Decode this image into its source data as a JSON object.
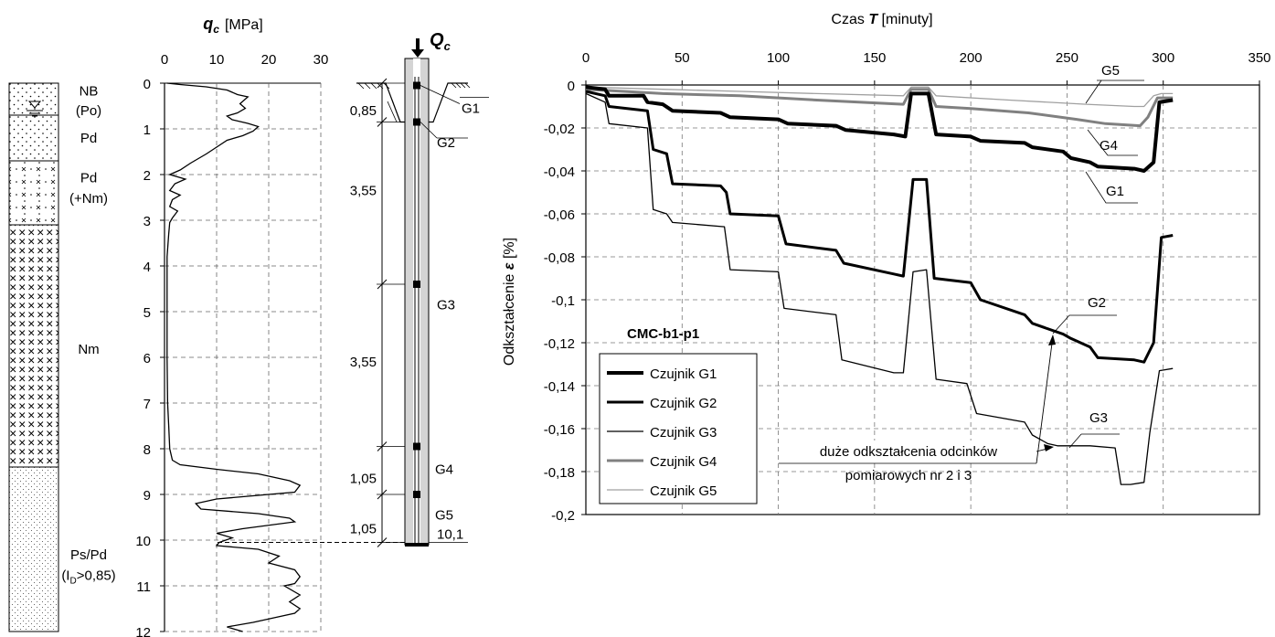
{
  "soil_profile": {
    "layers": [
      {
        "from": 0,
        "to": 0.7,
        "label": "NB",
        "pattern": "dots"
      },
      {
        "from": 0.7,
        "to": 1.7,
        "label": "Pd",
        "pattern": "dots"
      },
      {
        "from": 1.7,
        "to": 3.1,
        "label": "Pd",
        "pattern": "dots-x"
      },
      {
        "from": 3.1,
        "to": 8.4,
        "label": "Nm",
        "pattern": "x"
      },
      {
        "from": 8.4,
        "to": 12,
        "label": "Ps/Pd",
        "pattern": "fine-dots"
      }
    ],
    "labels": [
      {
        "text": "NB",
        "depth": 0.15
      },
      {
        "text": "(Po)",
        "depth": 0.58
      },
      {
        "text": "Pd",
        "depth": 1.18
      },
      {
        "text": "Pd",
        "depth": 2.05
      },
      {
        "text": "(+Nm)",
        "depth": 2.5
      },
      {
        "text": "Nm",
        "depth": 5.8
      },
      {
        "text": "Ps/Pd",
        "depth": 10.3
      },
      {
        "text": "(I",
        "depth": 10.75,
        "sub": "D",
        "rest": ">0,85)"
      }
    ]
  },
  "pile": {
    "load_label": "Q",
    "load_sub": "c",
    "length": 10.1,
    "dims": [
      {
        "from": 0,
        "to": 0.85,
        "label": "0,85"
      },
      {
        "from": 0.85,
        "to": 4.4,
        "label": "3,55"
      },
      {
        "from": 4.4,
        "to": 7.95,
        "label": "3,55"
      },
      {
        "from": 7.95,
        "to": 9.0,
        "label": "1,05"
      },
      {
        "from": 9.0,
        "to": 10.05,
        "label": "1,05"
      }
    ],
    "sensors": [
      {
        "name": "G1",
        "depth": 0.05
      },
      {
        "name": "G2",
        "depth": 0.85
      },
      {
        "name": "G3",
        "depth": 4.4
      },
      {
        "name": "G4",
        "depth": 7.95
      },
      {
        "name": "G5",
        "depth": 9.0
      }
    ],
    "bottom_label": "10,1"
  },
  "chart_data": [
    {
      "type": "line",
      "title": "",
      "xlabel": "q c [MPa]",
      "xlabel_parts": {
        "symbol": "q",
        "sub": "c",
        "unit": "[MPa]"
      },
      "ylabel": "",
      "xlim": [
        0,
        30
      ],
      "ylim": [
        0,
        12
      ],
      "x_ticks": [
        0,
        10,
        20,
        30
      ],
      "y_ticks": [
        0,
        1,
        2,
        3,
        4,
        5,
        6,
        7,
        8,
        9,
        10,
        11,
        12
      ],
      "grid": true,
      "series": [
        {
          "name": "",
          "color": "#000000",
          "points": [
            [
              0.5,
              0.0
            ],
            [
              3,
              0.03
            ],
            [
              8,
              0.08
            ],
            [
              12,
              0.15
            ],
            [
              14,
              0.25
            ],
            [
              16,
              0.3
            ],
            [
              14.5,
              0.45
            ],
            [
              15.5,
              0.55
            ],
            [
              14,
              0.65
            ],
            [
              12,
              0.72
            ],
            [
              13,
              0.8
            ],
            [
              16,
              0.88
            ],
            [
              18,
              0.95
            ],
            [
              17,
              1.05
            ],
            [
              15,
              1.15
            ],
            [
              12,
              1.25
            ],
            [
              10,
              1.4
            ],
            [
              8,
              1.55
            ],
            [
              5,
              1.75
            ],
            [
              3,
              1.9
            ],
            [
              1,
              2.0
            ],
            [
              4,
              2.1
            ],
            [
              2,
              2.2
            ],
            [
              1,
              2.35
            ],
            [
              3,
              2.45
            ],
            [
              1.5,
              2.55
            ],
            [
              1,
              2.7
            ],
            [
              2.5,
              2.8
            ],
            [
              1.5,
              2.95
            ],
            [
              1,
              3.05
            ],
            [
              0.8,
              3.3
            ],
            [
              0.5,
              3.8
            ],
            [
              0.5,
              5
            ],
            [
              0.5,
              6
            ],
            [
              0.6,
              7
            ],
            [
              0.8,
              7.5
            ],
            [
              1,
              8.0
            ],
            [
              1.5,
              8.25
            ],
            [
              3,
              8.35
            ],
            [
              10,
              8.45
            ],
            [
              18,
              8.55
            ],
            [
              24,
              8.7
            ],
            [
              26,
              8.8
            ],
            [
              25,
              8.95
            ],
            [
              15,
              9.05
            ],
            [
              10,
              9.1
            ],
            [
              6,
              9.2
            ],
            [
              7,
              9.32
            ],
            [
              18,
              9.42
            ],
            [
              24,
              9.52
            ],
            [
              25,
              9.6
            ],
            [
              15,
              9.75
            ],
            [
              10,
              9.85
            ],
            [
              13,
              9.95
            ],
            [
              10.5,
              10.05
            ],
            [
              10,
              10.12
            ],
            [
              18,
              10.2
            ],
            [
              22,
              10.35
            ],
            [
              20,
              10.5
            ],
            [
              25,
              10.65
            ],
            [
              26,
              10.8
            ],
            [
              25,
              10.95
            ],
            [
              23,
              11.0
            ],
            [
              26,
              11.2
            ],
            [
              24,
              11.35
            ],
            [
              26,
              11.5
            ],
            [
              25,
              11.6
            ],
            [
              21,
              11.7
            ],
            [
              17,
              11.8
            ],
            [
              12,
              11.9
            ],
            [
              15,
              12.0
            ]
          ]
        }
      ],
      "annotations": []
    },
    {
      "type": "line",
      "title": "Czas T [minuty]",
      "title_parts": {
        "pre": "Czas ",
        "symbol": "T",
        "post": " [minuty]"
      },
      "xlabel": "Czas T [minuty]",
      "ylabel": "Odkształcenie ε [%]",
      "ylabel_parts": {
        "pre": "Odkształcenie ",
        "symbol": "ε",
        "post": " [%]"
      },
      "xlim": [
        0,
        350
      ],
      "ylim": [
        -0.2,
        0
      ],
      "x_ticks": [
        0,
        50,
        100,
        150,
        200,
        250,
        300,
        350
      ],
      "y_ticks": [
        0,
        -0.02,
        -0.04,
        -0.06,
        -0.08,
        -0.1,
        -0.12,
        -0.14,
        -0.16,
        -0.18,
        -0.2
      ],
      "y_tick_labels": [
        "0",
        "-0,02",
        "-0,04",
        "-0,06",
        "-0,08",
        "-0,1",
        "-0,12",
        "-0,14",
        "-0,16",
        "-0,18",
        "-0,2"
      ],
      "grid": true,
      "legend_title": "CMC-b1-p1",
      "legend_position": "bottom-left",
      "series": [
        {
          "name": "Czujnik G1",
          "color": "#000000",
          "width": 4,
          "points": [
            [
              0,
              -0.001
            ],
            [
              10,
              -0.002
            ],
            [
              12,
              -0.005
            ],
            [
              30,
              -0.005
            ],
            [
              32,
              -0.008
            ],
            [
              40,
              -0.009
            ],
            [
              45,
              -0.012
            ],
            [
              70,
              -0.013
            ],
            [
              75,
              -0.015
            ],
            [
              100,
              -0.016
            ],
            [
              105,
              -0.018
            ],
            [
              130,
              -0.019
            ],
            [
              135,
              -0.021
            ],
            [
              160,
              -0.023
            ],
            [
              166,
              -0.024
            ],
            [
              169,
              -0.004
            ],
            [
              178,
              -0.004
            ],
            [
              182,
              -0.023
            ],
            [
              200,
              -0.024
            ],
            [
              205,
              -0.026
            ],
            [
              228,
              -0.027
            ],
            [
              232,
              -0.029
            ],
            [
              248,
              -0.031
            ],
            [
              252,
              -0.034
            ],
            [
              262,
              -0.036
            ],
            [
              266,
              -0.038
            ],
            [
              285,
              -0.039
            ],
            [
              290,
              -0.04
            ],
            [
              295,
              -0.036
            ],
            [
              298,
              -0.008
            ],
            [
              305,
              -0.007
            ]
          ]
        },
        {
          "name": "Czujnik G2",
          "color": "#000000",
          "width": 3,
          "points": [
            [
              0,
              -0.003
            ],
            [
              10,
              -0.005
            ],
            [
              12,
              -0.01
            ],
            [
              32,
              -0.012
            ],
            [
              35,
              -0.03
            ],
            [
              42,
              -0.032
            ],
            [
              45,
              -0.046
            ],
            [
              70,
              -0.047
            ],
            [
              73,
              -0.05
            ],
            [
              75,
              -0.06
            ],
            [
              100,
              -0.061
            ],
            [
              104,
              -0.074
            ],
            [
              130,
              -0.077
            ],
            [
              134,
              -0.083
            ],
            [
              160,
              -0.088
            ],
            [
              165,
              -0.089
            ],
            [
              170,
              -0.044
            ],
            [
              177,
              -0.044
            ],
            [
              181,
              -0.09
            ],
            [
              200,
              -0.092
            ],
            [
              205,
              -0.1
            ],
            [
              228,
              -0.107
            ],
            [
              232,
              -0.111
            ],
            [
              248,
              -0.116
            ],
            [
              252,
              -0.118
            ],
            [
              262,
              -0.122
            ],
            [
              266,
              -0.127
            ],
            [
              285,
              -0.128
            ],
            [
              290,
              -0.129
            ],
            [
              295,
              -0.12
            ],
            [
              299,
              -0.071
            ],
            [
              305,
              -0.07
            ]
          ]
        },
        {
          "name": "Czujnik G3",
          "color": "#000000",
          "width": 1.3,
          "points": [
            [
              0,
              -0.004
            ],
            [
              10,
              -0.008
            ],
            [
              12,
              -0.018
            ],
            [
              32,
              -0.02
            ],
            [
              35,
              -0.058
            ],
            [
              42,
              -0.06
            ],
            [
              45,
              -0.064
            ],
            [
              72,
              -0.066
            ],
            [
              75,
              -0.086
            ],
            [
              100,
              -0.087
            ],
            [
              103,
              -0.104
            ],
            [
              130,
              -0.107
            ],
            [
              133,
              -0.128
            ],
            [
              160,
              -0.134
            ],
            [
              165,
              -0.134
            ],
            [
              170,
              -0.087
            ],
            [
              177,
              -0.086
            ],
            [
              182,
              -0.137
            ],
            [
              198,
              -0.139
            ],
            [
              203,
              -0.153
            ],
            [
              228,
              -0.157
            ],
            [
              232,
              -0.163
            ],
            [
              240,
              -0.167
            ],
            [
              245,
              -0.168
            ],
            [
              258,
              -0.168
            ],
            [
              262,
              -0.168
            ],
            [
              275,
              -0.169
            ],
            [
              278,
              -0.186
            ],
            [
              283,
              -0.186
            ],
            [
              290,
              -0.185
            ],
            [
              293,
              -0.162
            ],
            [
              298,
              -0.133
            ],
            [
              305,
              -0.132
            ]
          ]
        },
        {
          "name": "Czujnik G4",
          "color": "#808080",
          "width": 3,
          "points": [
            [
              0,
              -0.002
            ],
            [
              20,
              -0.003
            ],
            [
              40,
              -0.004
            ],
            [
              80,
              -0.005
            ],
            [
              120,
              -0.007
            ],
            [
              165,
              -0.009
            ],
            [
              169,
              -0.002
            ],
            [
              178,
              -0.002
            ],
            [
              182,
              -0.01
            ],
            [
              200,
              -0.011
            ],
            [
              230,
              -0.013
            ],
            [
              255,
              -0.016
            ],
            [
              270,
              -0.018
            ],
            [
              288,
              -0.019
            ],
            [
              292,
              -0.015
            ],
            [
              297,
              -0.006
            ],
            [
              305,
              -0.006
            ]
          ]
        },
        {
          "name": "Czujnik G5",
          "color": "#a0a0a0",
          "width": 1.3,
          "points": [
            [
              0,
              -0.001
            ],
            [
              40,
              -0.002
            ],
            [
              80,
              -0.003
            ],
            [
              120,
              -0.004
            ],
            [
              165,
              -0.005
            ],
            [
              169,
              -0.001
            ],
            [
              178,
              -0.001
            ],
            [
              182,
              -0.005
            ],
            [
              220,
              -0.007
            ],
            [
              260,
              -0.009
            ],
            [
              285,
              -0.01
            ],
            [
              290,
              -0.01
            ],
            [
              295,
              -0.005
            ],
            [
              299,
              -0.004
            ],
            [
              305,
              -0.004
            ]
          ]
        }
      ],
      "annotations": [
        {
          "text": "G5"
        },
        {
          "text": "G4"
        },
        {
          "text": "G1"
        },
        {
          "text": "G2"
        },
        {
          "text": "G3"
        },
        {
          "text": "duże odkształcenia odcinków"
        },
        {
          "text": "pomiarowych nr 2 i 3"
        }
      ]
    }
  ]
}
